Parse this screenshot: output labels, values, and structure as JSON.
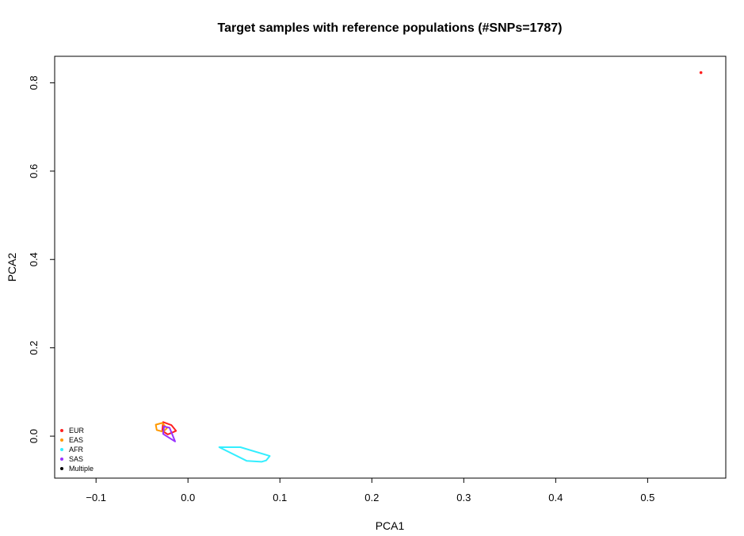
{
  "chart_data": {
    "type": "scatter",
    "title": "Target samples with reference populations (#SNPs=1787)",
    "xlabel": "PCA1",
    "ylabel": "PCA2",
    "xlim": [
      -0.145,
      0.585
    ],
    "ylim": [
      -0.095,
      0.86
    ],
    "x_ticks": [
      -0.1,
      0.0,
      0.1,
      0.2,
      0.3,
      0.4,
      0.5
    ],
    "x_tick_labels": [
      "−0.1",
      "0.0",
      "0.1",
      "0.2",
      "0.3",
      "0.4",
      "0.5"
    ],
    "y_ticks": [
      0.0,
      0.2,
      0.4,
      0.6,
      0.8
    ],
    "y_tick_labels": [
      "0.0",
      "0.2",
      "0.4",
      "0.6",
      "0.8"
    ],
    "legend_position": "bottom-left",
    "legend": [
      {
        "label": "EUR",
        "color": "#ff2020"
      },
      {
        "label": "EAS",
        "color": "#ff9900"
      },
      {
        "label": "AFR",
        "color": "#33eeff"
      },
      {
        "label": "SAS",
        "color": "#9933ff"
      },
      {
        "label": "Multiple",
        "color": "#000000"
      }
    ],
    "series": [
      {
        "name": "EUR",
        "color": "#ff2020",
        "polygon": [
          [
            -0.027,
            0.032
          ],
          [
            -0.018,
            0.025
          ],
          [
            -0.013,
            0.012
          ],
          [
            -0.022,
            0.004
          ],
          [
            -0.028,
            0.012
          ]
        ]
      },
      {
        "name": "EAS",
        "color": "#ff9900",
        "polygon": [
          [
            -0.028,
            0.03
          ],
          [
            -0.035,
            0.026
          ],
          [
            -0.034,
            0.014
          ],
          [
            -0.027,
            0.01
          ],
          [
            -0.023,
            0.018
          ]
        ]
      },
      {
        "name": "SAS",
        "color": "#9933ff",
        "polygon": [
          [
            -0.026,
            0.022
          ],
          [
            -0.02,
            0.019
          ],
          [
            -0.014,
            -0.012
          ],
          [
            -0.027,
            0.005
          ]
        ]
      },
      {
        "name": "AFR",
        "color": "#33eeff",
        "polygon": [
          [
            0.034,
            -0.025
          ],
          [
            0.057,
            -0.025
          ],
          [
            0.089,
            -0.045
          ],
          [
            0.085,
            -0.055
          ],
          [
            0.08,
            -0.058
          ],
          [
            0.064,
            -0.056
          ]
        ]
      }
    ],
    "points": [
      {
        "x": 0.558,
        "y": 0.823,
        "color": "#ff2020"
      }
    ]
  }
}
